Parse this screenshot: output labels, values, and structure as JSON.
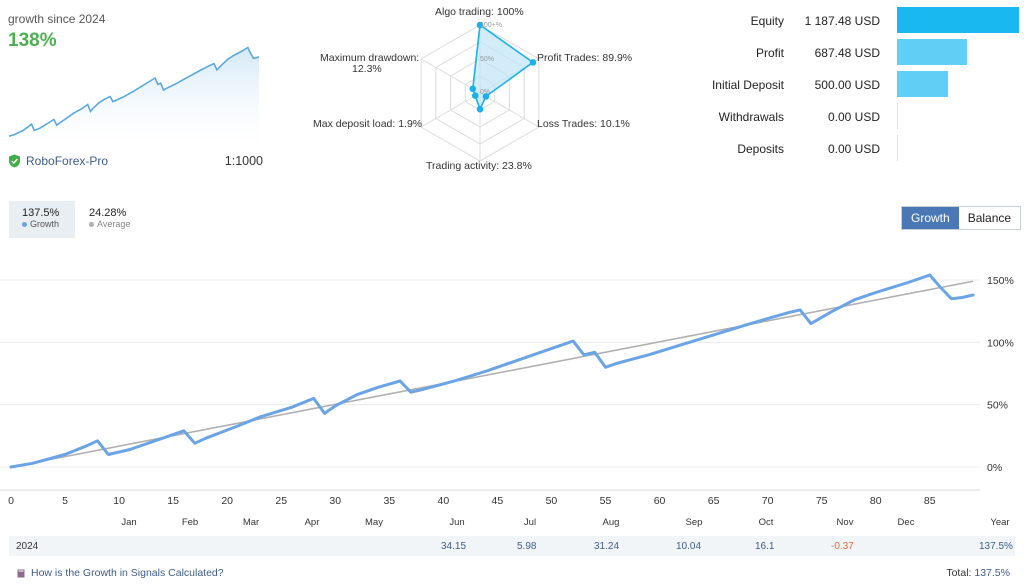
{
  "summary": {
    "caption": "growth since 2024",
    "value": "138%",
    "broker": "RoboForex-Pro",
    "leverage": "1:1000"
  },
  "radar": {
    "labels": {
      "algo": "Algo trading: 100%",
      "profit": "Profit Trades: 89.9%",
      "loss": "Loss Trades: 10.1%",
      "activity": "Trading activity: 23.8%",
      "load": "Max deposit load: 1.9%",
      "drawdown_title": "Maximum drawdown:",
      "drawdown_value": "12.3%"
    },
    "scale": {
      "p100": "100+%",
      "p50": "50%",
      "p0": "0%"
    },
    "values": [
      100,
      89.9,
      10.1,
      23.8,
      1.9,
      12.3
    ]
  },
  "financials": [
    {
      "label": "Equity",
      "value": "1 187.48 USD",
      "amount": 1187.48
    },
    {
      "label": "Profit",
      "value": "687.48 USD",
      "amount": 687.48
    },
    {
      "label": "Initial Deposit",
      "value": "500.00 USD",
      "amount": 500
    },
    {
      "label": "Withdrawals",
      "value": "0.00 USD",
      "amount": 0
    },
    {
      "label": "Deposits",
      "value": "0.00 USD",
      "amount": 0
    }
  ],
  "stats": {
    "growth_value": "137.5%",
    "growth_label": "Growth",
    "average_value": "24.28%",
    "average_label": "Average"
  },
  "toggle": {
    "growth": "Growth",
    "balance": "Balance"
  },
  "colors": {
    "growth_line": "#6aa4e5",
    "average_line": "#b0b0b0",
    "positive": "#4caf50",
    "negative": "#e26b3b"
  },
  "chart_data": {
    "type": "line",
    "x_ticks": [
      "0",
      "5",
      "10",
      "15",
      "20",
      "25",
      "30",
      "35",
      "40",
      "45",
      "50",
      "55",
      "60",
      "65",
      "70",
      "75",
      "80",
      "85"
    ],
    "month_labels": [
      "Jan",
      "Feb",
      "Mar",
      "Apr",
      "May",
      "Jun",
      "Jul",
      "Aug",
      "Sep",
      "Oct",
      "Nov",
      "Dec"
    ],
    "year_axis_label": "Year",
    "y_ticks": [
      "0%",
      "50%",
      "100%",
      "150%"
    ],
    "ylim": [
      -5,
      170
    ],
    "xlim": [
      0,
      89
    ],
    "series": [
      {
        "name": "Growth",
        "x": [
          0,
          2,
          5,
          7,
          8,
          9,
          11,
          14,
          16,
          17,
          18,
          21,
          23,
          26,
          28,
          29,
          30,
          32,
          34,
          36,
          37,
          38,
          41,
          44,
          47,
          50,
          52,
          53,
          54,
          55,
          56,
          59,
          62,
          65,
          68,
          70,
          72,
          73,
          74,
          76,
          78,
          80,
          83,
          85,
          86,
          87,
          88,
          89
        ],
        "values": [
          0,
          3,
          10,
          17,
          21,
          10,
          14,
          23,
          29,
          19,
          23,
          33,
          40,
          48,
          55,
          43,
          49,
          58,
          64,
          69,
          60,
          62,
          69,
          77,
          86,
          95,
          101,
          90,
          92,
          80,
          83,
          90,
          98,
          106,
          114,
          119,
          124,
          126,
          115,
          125,
          134,
          140,
          148,
          154,
          144,
          135,
          136,
          138
        ]
      },
      {
        "name": "Average",
        "x": [
          0,
          89
        ],
        "values": [
          0,
          149
        ]
      }
    ],
    "year_row": {
      "year": "2024",
      "months": [
        "",
        "",
        "",
        "",
        "",
        "34.15",
        "5.98",
        "31.24",
        "10.04",
        "16.1",
        "-0.37",
        ""
      ],
      "total": "137.5%"
    }
  },
  "footer": {
    "link": "How is the Growth in Signals Calculated?",
    "total_label": "Total:",
    "total_value": "137.5%"
  }
}
